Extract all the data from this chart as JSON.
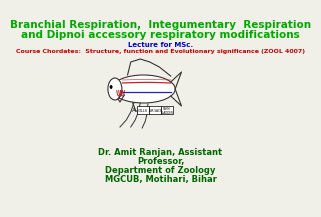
{
  "title_line1": "Branchial Respiration,  Integumentary  Respiration",
  "title_line2": "and Dipnoi accessory respiratory modifications",
  "subtitle1": "Lecture for MSc.",
  "subtitle2": "Course Chordates:  Structure, function and Evolutionary significance (ZOOL 4007)",
  "author_line1": "Dr. Amit Ranjan, Assistant",
  "author_line2": "Professor,",
  "author_line3": "Department of Zoology",
  "author_line4": "MGCUB, Motihari, Bihar",
  "title_color": "#00aa00",
  "subtitle1_color": "#0000cc",
  "subtitle2_color": "#cc0000",
  "author_color": "#006600",
  "bg_color": "#f0f0e8",
  "fish_outline_color": "#333333",
  "fish_red_color": "#cc2222",
  "fish_blue_color": "#2222cc"
}
